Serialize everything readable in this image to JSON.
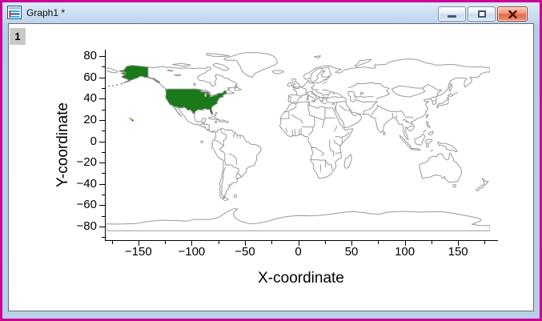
{
  "window": {
    "title": "Graph1 *",
    "controls": {
      "minimize": "minimize",
      "restore": "restore",
      "close": "close",
      "close_glyph": "x"
    }
  },
  "layer": {
    "badge": "1"
  },
  "plot": {
    "x_axis": {
      "title": "X-coordinate",
      "tick_values": [
        -150,
        -100,
        -50,
        0,
        50,
        100,
        150
      ],
      "tick_labels": [
        "−150",
        "−100",
        "−50",
        "0",
        "50",
        "100",
        "150"
      ],
      "minor_tick_values": [
        -175,
        -125,
        -75,
        -25,
        25,
        75,
        125,
        175
      ]
    },
    "y_axis": {
      "title": "Y-coordinate",
      "tick_values": [
        80,
        60,
        40,
        20,
        0,
        -20,
        -40,
        -60,
        -80
      ],
      "tick_labels": [
        "80",
        "60",
        "40",
        "20",
        "0",
        "−20",
        "−40",
        "−60",
        "−80"
      ],
      "minor_tick_values": [
        70,
        50,
        30,
        10,
        -10,
        -30,
        -50,
        -70,
        -90
      ]
    },
    "map": {
      "highlighted_region": "United States",
      "highlight_fill": "#1a7a1a",
      "outline_color": "#999999",
      "sea_fill": "#ffffff"
    }
  }
}
